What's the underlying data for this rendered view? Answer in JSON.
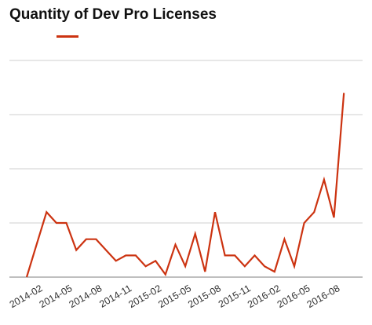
{
  "chart_data": {
    "type": "line",
    "title": "Quantity of Dev Pro Licenses",
    "xlabel": "",
    "ylabel": "",
    "grid": true,
    "legend": "top-left",
    "series_color": "#cc3311",
    "x": [
      "2014-01",
      "2014-02",
      "2014-03",
      "2014-04",
      "2014-05",
      "2014-06",
      "2014-07",
      "2014-08",
      "2014-09",
      "2014-10",
      "2014-11",
      "2014-12",
      "2015-01",
      "2015-02",
      "2015-03",
      "2015-04",
      "2015-05",
      "2015-06",
      "2015-07",
      "2015-08",
      "2015-09",
      "2015-10",
      "2015-11",
      "2015-12",
      "2016-01",
      "2016-02",
      "2016-03",
      "2016-04",
      "2016-05",
      "2016-06",
      "2016-07",
      "2016-08",
      "2016-09"
    ],
    "x_tick_labels": [
      "2014-02",
      "2014-05",
      "2014-08",
      "2014-11",
      "2015-02",
      "2015-05",
      "2015-08",
      "2015-11",
      "2016-02",
      "2016-05",
      "2016-08"
    ],
    "ylim": [
      0,
      4
    ],
    "y_gridlines": [
      0,
      1,
      2,
      3,
      4
    ],
    "series": [
      {
        "name": "",
        "values": [
          0,
          0.6,
          1.2,
          1.0,
          1.0,
          0.5,
          0.7,
          0.7,
          0.5,
          0.3,
          0.4,
          0.4,
          0.2,
          0.3,
          0.05,
          0.6,
          0.2,
          0.8,
          0.1,
          1.2,
          0.4,
          0.4,
          0.2,
          0.4,
          0.2,
          0.1,
          0.7,
          0.2,
          1.0,
          1.2,
          1.8,
          1.1,
          3.4
        ]
      }
    ]
  }
}
